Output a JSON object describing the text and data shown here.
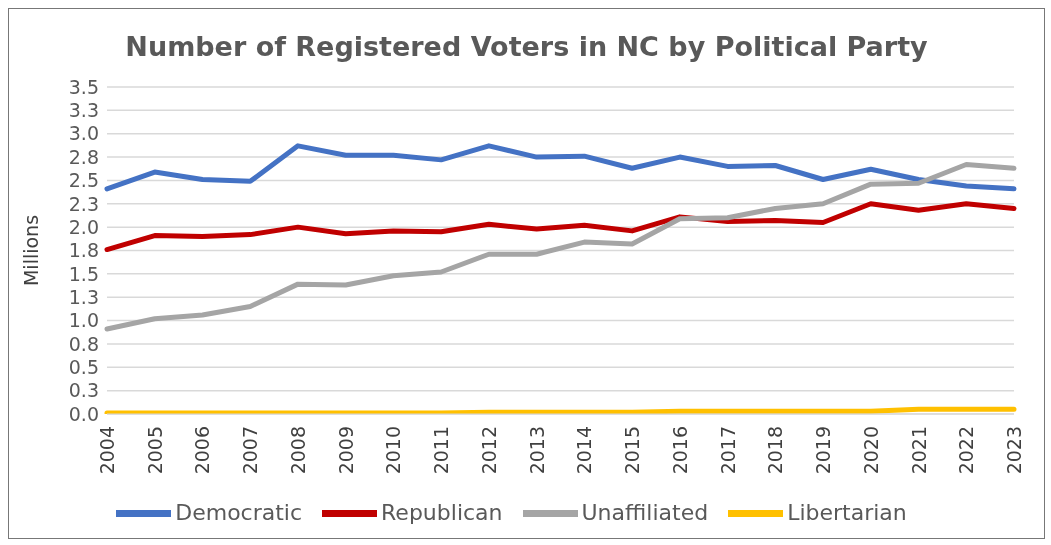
{
  "chart_data": {
    "type": "line",
    "title": "Number of Registered Voters in NC by Political Party",
    "ylabel": "Millions",
    "categories": [
      "2004",
      "2005",
      "2006",
      "2007",
      "2008",
      "2009",
      "2010",
      "2011",
      "2012",
      "2013",
      "2014",
      "2015",
      "2016",
      "2017",
      "2018",
      "2019",
      "2020",
      "2021",
      "2022",
      "2023"
    ],
    "series": [
      {
        "name": "Democratic",
        "color": "#4472c4",
        "values": [
          2.41,
          2.59,
          2.51,
          2.49,
          2.87,
          2.77,
          2.77,
          2.72,
          2.87,
          2.75,
          2.76,
          2.63,
          2.75,
          2.65,
          2.66,
          2.51,
          2.62,
          2.51,
          2.44,
          2.41
        ]
      },
      {
        "name": "Republican",
        "color": "#c00000",
        "values": [
          1.76,
          1.91,
          1.9,
          1.92,
          2.0,
          1.93,
          1.96,
          1.95,
          2.03,
          1.98,
          2.02,
          1.96,
          2.11,
          2.06,
          2.07,
          2.05,
          2.25,
          2.18,
          2.25,
          2.2
        ]
      },
      {
        "name": "Unaffiliated",
        "color": "#a5a5a5",
        "values": [
          0.91,
          1.02,
          1.06,
          1.15,
          1.39,
          1.38,
          1.48,
          1.52,
          1.71,
          1.71,
          1.84,
          1.82,
          2.09,
          2.1,
          2.2,
          2.25,
          2.46,
          2.47,
          2.67,
          2.63
        ]
      },
      {
        "name": "Libertarian",
        "color": "#ffc000",
        "values": [
          0.01,
          0.01,
          0.01,
          0.01,
          0.01,
          0.01,
          0.01,
          0.01,
          0.02,
          0.02,
          0.02,
          0.02,
          0.03,
          0.03,
          0.03,
          0.03,
          0.03,
          0.05,
          0.05,
          0.05
        ]
      }
    ],
    "ylim": [
      0,
      3.5
    ],
    "yticks": [
      {
        "value": 0,
        "label": "0.0"
      },
      {
        "value": 0.25,
        "label": "0.3"
      },
      {
        "value": 0.5,
        "label": "0.5"
      },
      {
        "value": 0.75,
        "label": "0.8"
      },
      {
        "value": 1,
        "label": "1.0"
      },
      {
        "value": 1.25,
        "label": "1.3"
      },
      {
        "value": 1.5,
        "label": "1.5"
      },
      {
        "value": 1.75,
        "label": "1.8"
      },
      {
        "value": 2,
        "label": "2.0"
      },
      {
        "value": 2.25,
        "label": "2.3"
      },
      {
        "value": 2.5,
        "label": "2.5"
      },
      {
        "value": 2.75,
        "label": "2.8"
      },
      {
        "value": 3,
        "label": "3.0"
      },
      {
        "value": 3.25,
        "label": "3.3"
      },
      {
        "value": 3.5,
        "label": "3.5"
      }
    ],
    "grid": "y",
    "legend": "bottom",
    "marker": "none",
    "line_style": "solid"
  }
}
